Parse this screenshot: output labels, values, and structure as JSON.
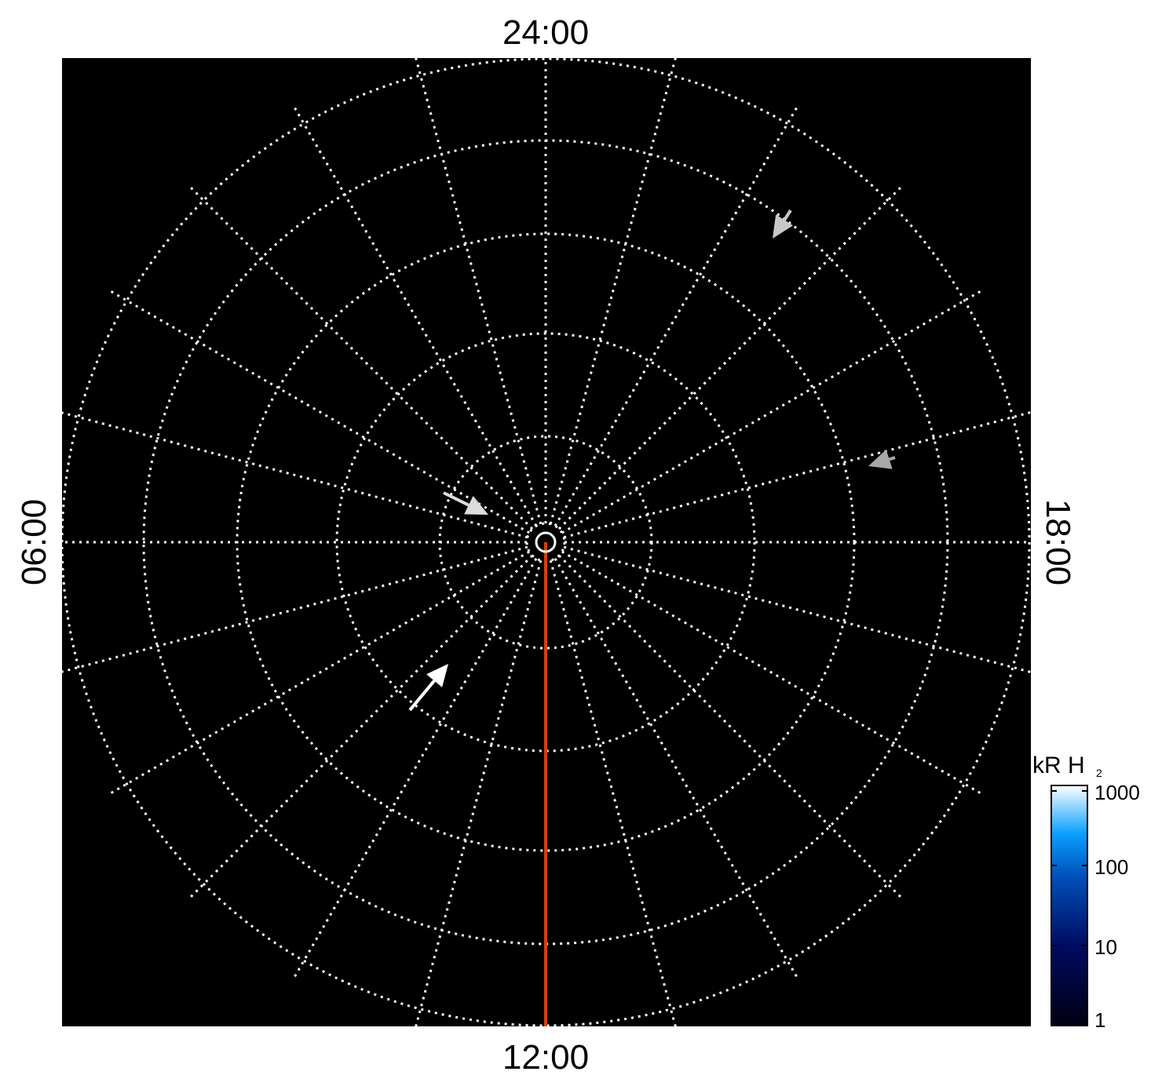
{
  "chart_data": {
    "type": "heatmap",
    "projection": "polar",
    "background": "#000000",
    "grid": true,
    "local_time_labels": {
      "top": "24:00",
      "bottom": "12:00",
      "left": "06:00",
      "right": "18:00"
    },
    "meridian_step_hours": 1,
    "latitude_circles": 5,
    "highlight_meridian": {
      "local_time": "12:00",
      "color": "#d4400f"
    },
    "colorbar": {
      "title": "kR H",
      "title_subscript": "2",
      "scale": "log",
      "range": [
        1,
        1000
      ],
      "ticks": [
        "1000",
        "100",
        "10",
        "1"
      ],
      "colors": [
        "#000010",
        "#000a60",
        "#0050b8",
        "#0aa0ff",
        "#ffffff"
      ],
      "placement": "bottom-right"
    },
    "arrows": [
      {
        "color": "#c8c8c8",
        "label": ""
      },
      {
        "color": "#a8a8a8",
        "label": ""
      },
      {
        "color": "#dcdcdc",
        "label": ""
      },
      {
        "color": "#ffffff",
        "label": ""
      }
    ]
  }
}
